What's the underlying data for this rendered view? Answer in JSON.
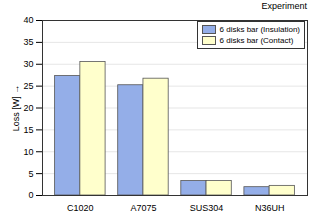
{
  "chart_data": {
    "type": "bar",
    "title": "Experiment",
    "categories": [
      "C1020",
      "A7075",
      "SUS304",
      "N36UH"
    ],
    "series": [
      {
        "name": "6 disks bar (Insulation)",
        "color": "#94aee8",
        "values": [
          27.3,
          25.2,
          3.3,
          1.9
        ]
      },
      {
        "name": "6 disks bar (Contact)",
        "color": "#ffffcc",
        "values": [
          30.5,
          26.7,
          3.3,
          2.2
        ]
      }
    ],
    "ylabel": "Loss [W]",
    "ylim": [
      0,
      40
    ],
    "yticks": [
      0,
      5,
      10,
      15,
      20,
      25,
      30,
      35,
      40
    ],
    "grid": true,
    "legend": "top-right"
  }
}
